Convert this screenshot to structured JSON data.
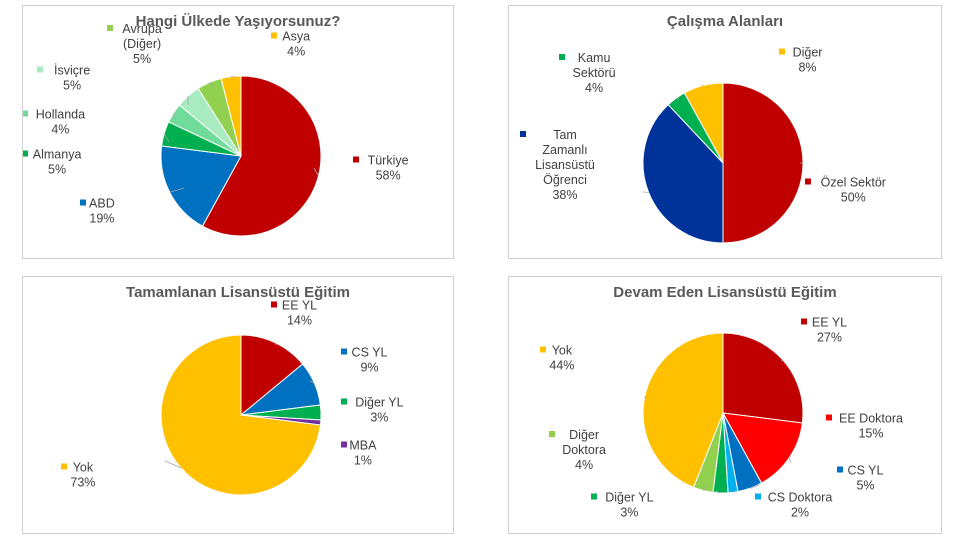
{
  "chart_data": [
    {
      "type": "pie",
      "title": "Hangi Ülkede Yaşıyorsunuz?",
      "slices": [
        {
          "lines": [
            "Türkiye"
          ],
          "value": 58,
          "pct": "58%",
          "color": "#c00000"
        },
        {
          "lines": [
            "ABD"
          ],
          "value": 19,
          "pct": "19%",
          "color": "#0070c0"
        },
        {
          "lines": [
            "Almanya"
          ],
          "value": 5,
          "pct": "5%",
          "color": "#00b050"
        },
        {
          "lines": [
            "Hollanda"
          ],
          "value": 4,
          "pct": "4%",
          "color": "#6fdc9a"
        },
        {
          "lines": [
            "İsviçre"
          ],
          "value": 5,
          "pct": "5%",
          "color": "#a9ebc1"
        },
        {
          "lines": [
            "Avrupa",
            "(Diğer)"
          ],
          "value": 5,
          "pct": "5%",
          "color": "#92d050"
        },
        {
          "lines": [
            "Asya"
          ],
          "value": 4,
          "pct": "4%",
          "color": "#ffc000"
        }
      ]
    },
    {
      "type": "pie",
      "title": "Çalışma Alanları",
      "slices": [
        {
          "lines": [
            "Özel Sektör"
          ],
          "value": 50,
          "pct": "50%",
          "color": "#c00000"
        },
        {
          "lines": [
            "Tam",
            "Zamanlı",
            "Lisansüstü",
            "Öğrenci"
          ],
          "value": 38,
          "pct": "38%",
          "color": "#003399"
        },
        {
          "lines": [
            "Kamu",
            "Sektörü"
          ],
          "value": 4,
          "pct": "4%",
          "color": "#00b050"
        },
        {
          "lines": [
            "Diğer"
          ],
          "value": 8,
          "pct": "8%",
          "color": "#ffc000"
        }
      ]
    },
    {
      "type": "pie",
      "title": "Tamamlanan Lisansüstü Eğitim",
      "slices": [
        {
          "lines": [
            "EE YL"
          ],
          "value": 14,
          "pct": "14%",
          "color": "#c00000"
        },
        {
          "lines": [
            "CS YL"
          ],
          "value": 9,
          "pct": "9%",
          "color": "#0070c0"
        },
        {
          "lines": [
            "Diğer YL"
          ],
          "value": 3,
          "pct": "3%",
          "color": "#00b050"
        },
        {
          "lines": [
            "MBA"
          ],
          "value": 1,
          "pct": "1%",
          "color": "#7030a0"
        },
        {
          "lines": [
            "Yok"
          ],
          "value": 73,
          "pct": "73%",
          "color": "#ffc000"
        }
      ]
    },
    {
      "type": "pie",
      "title": "Devam Eden Lisansüstü Eğitim",
      "slices": [
        {
          "lines": [
            "EE YL"
          ],
          "value": 27,
          "pct": "27%",
          "color": "#c00000"
        },
        {
          "lines": [
            "EE Doktora"
          ],
          "value": 15,
          "pct": "15%",
          "color": "#ff0000"
        },
        {
          "lines": [
            "CS YL"
          ],
          "value": 5,
          "pct": "5%",
          "color": "#0070c0"
        },
        {
          "lines": [
            "CS Doktora"
          ],
          "value": 2,
          "pct": "2%",
          "color": "#00b0f0"
        },
        {
          "lines": [
            "Diğer YL"
          ],
          "value": 3,
          "pct": "3%",
          "color": "#00b050"
        },
        {
          "lines": [
            "Diğer",
            "Doktora"
          ],
          "value": 4,
          "pct": "4%",
          "color": "#92d050"
        },
        {
          "lines": [
            "Yok"
          ],
          "value": 44,
          "pct": "44%",
          "color": "#ffc000"
        }
      ]
    }
  ]
}
